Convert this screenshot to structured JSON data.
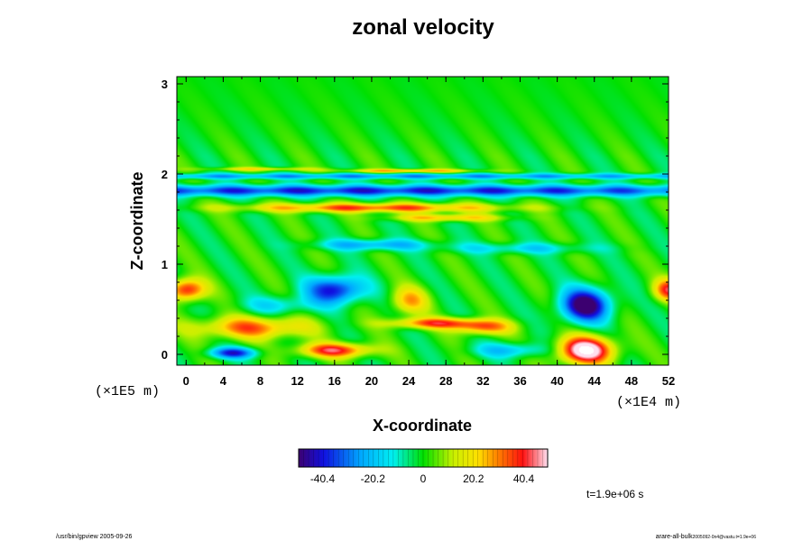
{
  "chart_data": {
    "type": "heatmap",
    "title": "zonal velocity",
    "xlabel": "X-coordinate",
    "ylabel": "Z-coordinate",
    "x_unit": "(×1E4 m)",
    "y_unit": "(×1E5 m)",
    "xlim": [
      -1,
      52
    ],
    "ylim": [
      -0.12,
      3.08
    ],
    "x_ticks": [
      "0",
      "4",
      "8",
      "12",
      "16",
      "20",
      "24",
      "28",
      "32",
      "36",
      "40",
      "44",
      "48",
      "52"
    ],
    "y_ticks": [
      "0",
      "1",
      "2",
      "3"
    ],
    "colorbar": {
      "range": [
        -50,
        50
      ],
      "tick_labels": [
        "-40.4",
        "-20.2",
        "0",
        "20.2",
        "40.4"
      ],
      "tick_values": [
        -40.4,
        -20.2,
        0,
        20.2,
        40.4
      ]
    },
    "time_label": "t=1.9e+06 s",
    "field_features": [
      {
        "x": 21,
        "z": 1.82,
        "value": -38,
        "sx": 60,
        "sz": 0.06
      },
      {
        "x": 21,
        "z": 1.98,
        "value": -25,
        "sx": 60,
        "sz": 0.03
      },
      {
        "x": 20,
        "z": 1.63,
        "value": 35,
        "sx": 14,
        "sz": 0.05
      },
      {
        "x": 28,
        "z": 1.52,
        "value": 25,
        "sx": 6,
        "sz": 0.04
      },
      {
        "x": 24,
        "z": 2.04,
        "value": 28,
        "sx": 7,
        "sz": 0.02
      },
      {
        "x": 8,
        "z": 2.06,
        "value": 18,
        "sx": 6,
        "sz": 0.02
      },
      {
        "x": 20,
        "z": 1.22,
        "value": -24,
        "sx": 6,
        "sz": 0.06
      },
      {
        "x": 36,
        "z": 1.18,
        "value": -15,
        "sx": 8,
        "sz": 0.06
      },
      {
        "x": 16,
        "z": 0.72,
        "value": -42,
        "sx": 3,
        "sz": 0.15
      },
      {
        "x": 43,
        "z": 0.55,
        "value": -55,
        "sx": 2.6,
        "sz": 0.18
      },
      {
        "x": 43,
        "z": 0.05,
        "value": 58,
        "sx": 3,
        "sz": 0.15
      },
      {
        "x": 0,
        "z": 0.72,
        "value": 42,
        "sx": 2,
        "sz": 0.12
      },
      {
        "x": 52,
        "z": 0.72,
        "value": 38,
        "sx": 1.6,
        "sz": 0.12
      },
      {
        "x": 7,
        "z": 0.3,
        "value": 32,
        "sx": 6,
        "sz": 0.12
      },
      {
        "x": 5,
        "z": 0.02,
        "value": -38,
        "sx": 2.5,
        "sz": 0.06
      },
      {
        "x": 16,
        "z": 0.05,
        "value": 40,
        "sx": 4,
        "sz": 0.08
      },
      {
        "x": 27,
        "z": 0.35,
        "value": 35,
        "sx": 5,
        "sz": 0.06
      },
      {
        "x": 32,
        "z": 0.3,
        "value": 30,
        "sx": 3,
        "sz": 0.08
      },
      {
        "x": 24,
        "z": 0.6,
        "value": 25,
        "sx": 2,
        "sz": 0.15
      },
      {
        "x": 35,
        "z": 0.05,
        "value": -20,
        "sx": 4,
        "sz": 0.08
      },
      {
        "x": 10,
        "z": 0.55,
        "value": -15,
        "sx": 4,
        "sz": 0.1
      }
    ]
  },
  "footer": {
    "left_note": "/usr/bin/gpview 2005-09-26",
    "right_note_main": "arare-all-bulk",
    "right_note_sub": "2005092-0n4@vastu.t=1.9e+06"
  }
}
